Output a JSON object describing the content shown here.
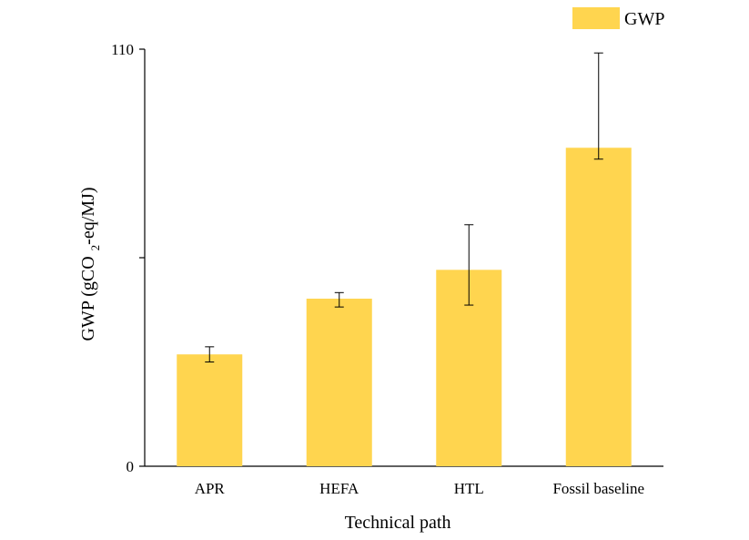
{
  "chart_data": {
    "type": "bar",
    "title": "",
    "xlabel": "Technical path",
    "ylabel": {
      "prefix": "GWP (gCO",
      "subscript": "2",
      "suffix": "-eq/MJ)"
    },
    "categories": [
      "APR",
      "HEFA",
      "HTL",
      "Fossil baseline"
    ],
    "series": [
      {
        "name": "GWP",
        "values": [
          29.5,
          44.2,
          51.8,
          84.0
        ],
        "error_low": [
          27.5,
          42.0,
          42.5,
          81.0
        ],
        "error_high": [
          31.5,
          45.8,
          63.7,
          109.0
        ]
      }
    ],
    "ylim": [
      0,
      110
    ],
    "yticks": [
      0,
      55,
      110
    ],
    "ytick_labels": [
      "0",
      "",
      "110"
    ],
    "grid": false,
    "legend": "top-right",
    "colors": {
      "bar": "#FFD54F",
      "axis": "#000000",
      "error": "#000000"
    }
  }
}
